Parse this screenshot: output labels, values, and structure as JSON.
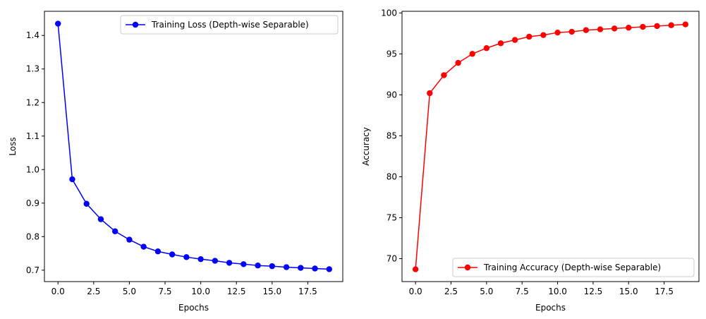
{
  "chart_data": [
    {
      "type": "line",
      "xlabel": "Epochs",
      "ylabel": "Loss",
      "xlim": [
        -0.95,
        19.95
      ],
      "ylim": [
        0.666,
        1.472
      ],
      "xticks": [
        0.0,
        2.5,
        5.0,
        7.5,
        10.0,
        12.5,
        15.0,
        17.5
      ],
      "xtick_labels": [
        "0.0",
        "2.5",
        "5.0",
        "7.5",
        "10.0",
        "12.5",
        "15.0",
        "17.5"
      ],
      "yticks": [
        0.7,
        0.8,
        0.9,
        1.0,
        1.1,
        1.2,
        1.3,
        1.4
      ],
      "ytick_labels": [
        "0.7",
        "0.8",
        "0.9",
        "1.0",
        "1.1",
        "1.2",
        "1.3",
        "1.4"
      ],
      "grid": false,
      "legend_position": "upper-right",
      "series": [
        {
          "name": "Training Loss (Depth-wise Separable)",
          "color": "#0000ff",
          "marker": "circle",
          "x": [
            0,
            1,
            2,
            3,
            4,
            5,
            6,
            7,
            8,
            9,
            10,
            11,
            12,
            13,
            14,
            15,
            16,
            17,
            18,
            19
          ],
          "values": [
            1.435,
            0.971,
            0.898,
            0.852,
            0.816,
            0.791,
            0.77,
            0.756,
            0.747,
            0.739,
            0.733,
            0.728,
            0.722,
            0.718,
            0.714,
            0.712,
            0.709,
            0.707,
            0.705,
            0.703
          ]
        }
      ]
    },
    {
      "type": "line",
      "xlabel": "Epochs",
      "ylabel": "Accuracy",
      "xlim": [
        -0.95,
        19.95
      ],
      "ylim": [
        67.2,
        100.2
      ],
      "xticks": [
        0.0,
        2.5,
        5.0,
        7.5,
        10.0,
        12.5,
        15.0,
        17.5
      ],
      "xtick_labels": [
        "0.0",
        "2.5",
        "5.0",
        "7.5",
        "10.0",
        "12.5",
        "15.0",
        "17.5"
      ],
      "yticks": [
        70,
        75,
        80,
        85,
        90,
        95,
        100
      ],
      "ytick_labels": [
        "70",
        "75",
        "80",
        "85",
        "90",
        "95",
        "100"
      ],
      "grid": false,
      "legend_position": "lower-right",
      "series": [
        {
          "name": "Training Accuracy (Depth-wise Separable)",
          "color": "#ff0000",
          "marker": "circle",
          "x": [
            0,
            1,
            2,
            3,
            4,
            5,
            6,
            7,
            8,
            9,
            10,
            11,
            12,
            13,
            14,
            15,
            16,
            17,
            18,
            19
          ],
          "values": [
            68.7,
            90.2,
            92.4,
            93.9,
            95.0,
            95.7,
            96.3,
            96.7,
            97.1,
            97.3,
            97.6,
            97.7,
            97.9,
            98.0,
            98.1,
            98.2,
            98.3,
            98.4,
            98.5,
            98.6
          ]
        }
      ]
    }
  ]
}
